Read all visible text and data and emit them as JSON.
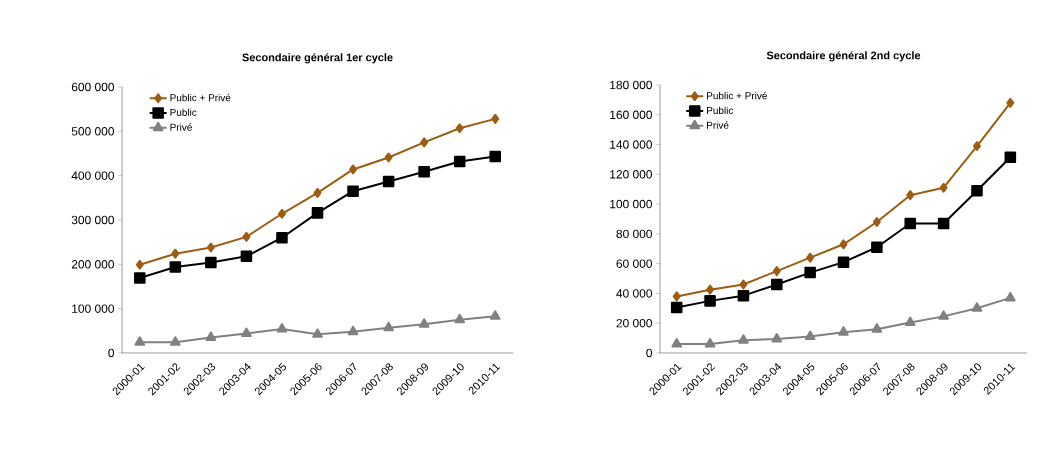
{
  "chart_data": [
    {
      "type": "line",
      "title": "Secondaire général 1er cycle",
      "categories": [
        "2000-01",
        "2001-02",
        "2002-03",
        "2003-04",
        "2004-05",
        "2005-06",
        "2006-07",
        "2007-08",
        "2008-09",
        "2009-10",
        "2010-11"
      ],
      "series": [
        {
          "name": "Public + Privé",
          "color": "#9c5d12",
          "marker": "diamond",
          "values": [
            199000,
            224000,
            238000,
            262000,
            314000,
            361000,
            414000,
            441000,
            475000,
            507000,
            528000
          ]
        },
        {
          "name": "Public",
          "color": "#000000",
          "marker": "square",
          "values": [
            169000,
            194000,
            204000,
            218000,
            260000,
            316000,
            365000,
            387000,
            409000,
            432000,
            443000
          ]
        },
        {
          "name": "Privé",
          "color": "#808080",
          "marker": "triangle",
          "values": [
            24000,
            24000,
            35000,
            44000,
            54000,
            42000,
            48000,
            57000,
            65000,
            75000,
            83000
          ]
        }
      ],
      "ylim": [
        0,
        600000
      ],
      "yticks": [
        {
          "value": 0,
          "label": "0"
        },
        {
          "value": 100000,
          "label": "100 000"
        },
        {
          "value": 200000,
          "label": "200 000"
        },
        {
          "value": 300000,
          "label": "300 000"
        },
        {
          "value": 400000,
          "label": "400 000"
        },
        {
          "value": 500000,
          "label": "500 000"
        },
        {
          "value": 600000,
          "label": "600 000"
        }
      ],
      "legend": "top left",
      "line_style": "solid"
    },
    {
      "type": "line",
      "title": "Secondaire général 2nd cycle",
      "categories": [
        "2000-01",
        "2001-02",
        "2002-03",
        "2003-04",
        "2004-05",
        "2005-06",
        "2006-07",
        "2007-08",
        "2008-09",
        "2009-10",
        "2010-11"
      ],
      "series": [
        {
          "name": "Public + Privé",
          "color": "#9c5d12",
          "marker": "diamond",
          "values": [
            38000,
            42500,
            46000,
            55000,
            64000,
            73000,
            88000,
            106000,
            111000,
            139000,
            168000
          ]
        },
        {
          "name": "Public",
          "color": "#000000",
          "marker": "square",
          "values": [
            30600,
            35000,
            38500,
            46000,
            54000,
            61000,
            71000,
            87000,
            87000,
            109000,
            131500
          ]
        },
        {
          "name": "Privé",
          "color": "#808080",
          "marker": "triangle",
          "values": [
            6000,
            6000,
            8500,
            9400,
            11000,
            14000,
            16000,
            20500,
            24600,
            30000,
            37000
          ]
        }
      ],
      "ylim": [
        0,
        180000
      ],
      "yticks": [
        {
          "value": 0,
          "label": "0"
        },
        {
          "value": 20000,
          "label": "20 000"
        },
        {
          "value": 40000,
          "label": "40 000"
        },
        {
          "value": 60000,
          "label": "60 000"
        },
        {
          "value": 80000,
          "label": "80 000"
        },
        {
          "value": 100000,
          "label": "100 000"
        },
        {
          "value": 120000,
          "label": "120 000"
        },
        {
          "value": 140000,
          "label": "140 000"
        },
        {
          "value": 160000,
          "label": "160 000"
        },
        {
          "value": 180000,
          "label": "180 000"
        }
      ],
      "legend": "top left",
      "line_style": "solid"
    }
  ]
}
